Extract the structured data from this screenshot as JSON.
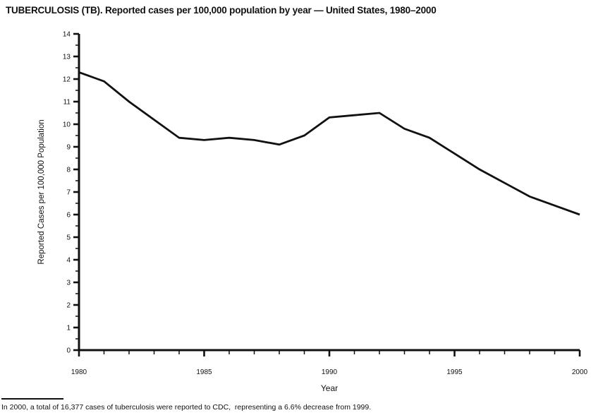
{
  "title": "TUBERCULOSIS (TB). Reported cases per 100,000 population by year — United States, 1980–2000",
  "footnote": "In 2000, a total of 16,377 cases of tuberculosis were reported to CDC,  representing a 6.6% decrease from 1999.",
  "colors": {
    "ink": "#111111",
    "background": "#ffffff"
  },
  "chart_data": {
    "type": "line",
    "title": "TUBERCULOSIS (TB). Reported cases per 100,000 population by year — United States, 1980–2000",
    "xlabel": "Year",
    "ylabel": "Reported Cases per 100,000 Population",
    "x": [
      1980,
      1981,
      1982,
      1983,
      1984,
      1985,
      1986,
      1987,
      1988,
      1989,
      1990,
      1991,
      1992,
      1993,
      1994,
      1995,
      1996,
      1997,
      1998,
      1999,
      2000
    ],
    "series": [
      {
        "name": "Reported TB cases per 100,000 population",
        "values": [
          12.3,
          11.9,
          11.0,
          10.2,
          9.4,
          9.3,
          9.4,
          9.3,
          9.1,
          9.5,
          10.3,
          10.4,
          10.5,
          9.8,
          9.4,
          8.7,
          8.0,
          7.4,
          6.8,
          6.4,
          6.0
        ]
      }
    ],
    "xlim": [
      1980,
      2000
    ],
    "ylim": [
      0,
      14
    ],
    "y_major_tick_step": 1,
    "y_minor_step": 0.5,
    "x_labeled_ticks": [
      1980,
      1985,
      1990,
      1995,
      2000
    ],
    "x_minor_step": 1,
    "grid": false,
    "legend": "none",
    "line_color": "#111111"
  }
}
